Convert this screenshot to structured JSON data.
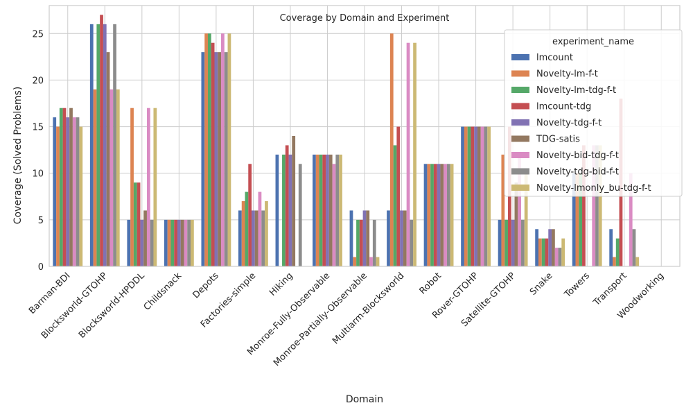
{
  "chart_data": {
    "type": "bar",
    "title": "Coverage by Domain and Experiment",
    "xlabel": "Domain",
    "ylabel": "Coverage (Solved Problems)",
    "ylim": [
      0,
      28
    ],
    "yticks": [
      0,
      5,
      10,
      15,
      20,
      25
    ],
    "grid": true,
    "legend": {
      "title": "experiment_name",
      "placement": "top-right"
    },
    "categories": [
      "Barman-BDI",
      "Blocksworld-GTOHP",
      "Blocksworld-HPDDL",
      "Childsnack",
      "Depots",
      "Factories-simple",
      "Hiking",
      "Monroe-Fully-Observable",
      "Monroe-Partially-Observable",
      "Multiarm-Blocksworld",
      "Robot",
      "Rover-GTOHP",
      "Satellite-GTOHP",
      "Snake",
      "Towers",
      "Transport",
      "Woodworking"
    ],
    "series": [
      {
        "name": "lmcount",
        "color": "#4c72b0",
        "values": [
          16,
          26,
          5,
          5,
          23,
          6,
          12,
          12,
          6,
          6,
          11,
          15,
          5,
          4,
          10,
          4,
          0
        ]
      },
      {
        "name": "Novelty-lm-f-t",
        "color": "#dd8452",
        "values": [
          15,
          19,
          17,
          5,
          25,
          7,
          0,
          12,
          1,
          25,
          11,
          15,
          12,
          3,
          10,
          1,
          0
        ]
      },
      {
        "name": "Novelty-lm-tdg-f-t",
        "color": "#55a868",
        "values": [
          17,
          26,
          9,
          5,
          25,
          8,
          12,
          12,
          5,
          13,
          11,
          15,
          5,
          3,
          10,
          3,
          0
        ]
      },
      {
        "name": "lmcount-tdg",
        "color": "#c44e52",
        "values": [
          17,
          27,
          9,
          5,
          24,
          11,
          13,
          12,
          5,
          15,
          11,
          15,
          15,
          3,
          13,
          18,
          0
        ]
      },
      {
        "name": "Novelty-tdg-f-t",
        "color": "#8172b3",
        "values": [
          16,
          26,
          5,
          5,
          23,
          6,
          12,
          12,
          6,
          6,
          11,
          15,
          5,
          4,
          0,
          0,
          0
        ]
      },
      {
        "name": "TDG-satis",
        "color": "#937860",
        "values": [
          17,
          23,
          6,
          5,
          23,
          6,
          14,
          12,
          6,
          6,
          11,
          15,
          9,
          4,
          0,
          0,
          0
        ]
      },
      {
        "name": "Novelty-bid-tdg-f-t",
        "color": "#da8bc3",
        "values": [
          16,
          19,
          17,
          5,
          25,
          8,
          0,
          11,
          1,
          24,
          11,
          15,
          12,
          2,
          13,
          10,
          0
        ]
      },
      {
        "name": "Novelty-tdg-bid-f-t",
        "color": "#8c8c8c",
        "values": [
          16,
          26,
          5,
          5,
          23,
          6,
          11,
          12,
          5,
          5,
          11,
          15,
          5,
          2,
          13,
          4,
          0
        ]
      },
      {
        "name": "Novelty-lmonly_bu-tdg-f-t",
        "color": "#ccb974",
        "values": [
          15,
          19,
          17,
          5,
          25,
          7,
          0,
          12,
          1,
          24,
          11,
          15,
          10,
          3,
          13,
          1,
          0
        ]
      }
    ]
  }
}
